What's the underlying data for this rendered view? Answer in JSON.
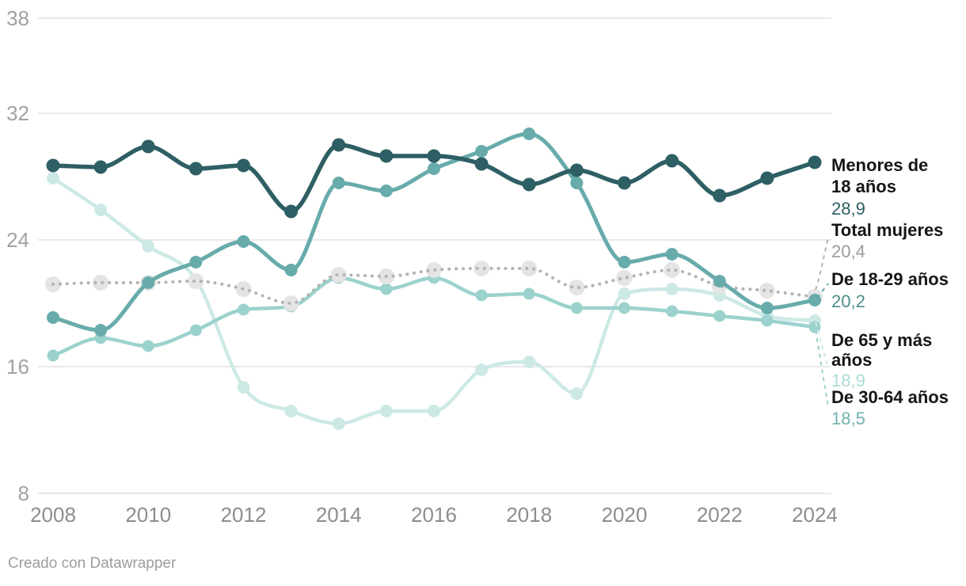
{
  "chart_data": {
    "type": "line",
    "x": [
      2008,
      2009,
      2010,
      2011,
      2012,
      2013,
      2014,
      2015,
      2016,
      2017,
      2018,
      2019,
      2020,
      2021,
      2022,
      2023,
      2024
    ],
    "x_ticks": [
      2008,
      2010,
      2012,
      2014,
      2016,
      2018,
      2020,
      2022,
      2024
    ],
    "y_ticks": [
      8,
      16,
      24,
      32,
      38
    ],
    "ylim": [
      8,
      38
    ],
    "grid": "horizontal",
    "legend_position": "right-end-labels",
    "series": [
      {
        "id": "menores",
        "name": "Menores de 18 años",
        "label_lines": [
          "Menores de",
          "18 años"
        ],
        "end_value_label": "28,9",
        "style": "solid",
        "color": "#2d5f64",
        "label_color": "#2d5f64",
        "values": [
          28.7,
          28.6,
          29.9,
          28.5,
          28.7,
          25.8,
          30.0,
          29.3,
          29.3,
          28.8,
          27.5,
          28.4,
          27.6,
          29.0,
          26.8,
          27.9,
          28.9
        ]
      },
      {
        "id": "total",
        "name": "Total mujeres",
        "label_lines": [
          "Total mujeres"
        ],
        "end_value_label": "20,4",
        "style": "dotted",
        "color": "#b3b3b3",
        "marker_color": "#e4e4e4",
        "label_color": "#9b9b9b",
        "values": [
          21.2,
          21.3,
          21.3,
          21.4,
          20.9,
          20.0,
          21.8,
          21.7,
          22.1,
          22.2,
          22.2,
          21.0,
          21.6,
          22.1,
          21.1,
          20.8,
          20.4
        ]
      },
      {
        "id": "de1829",
        "name": "De 18-29 años",
        "label_lines": [
          "De 18-29 años"
        ],
        "end_value_label": "20,2",
        "style": "solid",
        "color": "#68abab",
        "label_color": "#4d8d8d",
        "values": [
          19.1,
          18.3,
          21.3,
          22.6,
          23.9,
          22.1,
          27.6,
          27.1,
          28.5,
          29.6,
          30.7,
          27.6,
          22.6,
          23.1,
          21.4,
          19.7,
          20.2
        ]
      },
      {
        "id": "de65",
        "name": "De 65 y más años",
        "label_lines": [
          "De 65 y más",
          "años"
        ],
        "end_value_label": "18,9",
        "style": "solid",
        "color": "#cde9e6",
        "label_color": "#abdbd6",
        "values": [
          27.9,
          25.9,
          23.6,
          21.5,
          14.7,
          13.2,
          12.4,
          13.2,
          13.2,
          15.8,
          16.3,
          14.3,
          20.6,
          20.9,
          20.5,
          19.2,
          18.9
        ]
      },
      {
        "id": "de3064",
        "name": "De 30-64 años",
        "label_lines": [
          "De 30-64 años"
        ],
        "end_value_label": "18,5",
        "style": "solid",
        "color": "#9bd2cd",
        "label_color": "#72b2af",
        "values": [
          16.7,
          17.8,
          17.3,
          18.3,
          19.6,
          19.8,
          21.6,
          20.9,
          21.6,
          20.5,
          20.6,
          19.7,
          19.7,
          19.5,
          19.2,
          18.9,
          18.5
        ]
      }
    ]
  },
  "footer": {
    "text": "Creado con Datawrapper"
  }
}
